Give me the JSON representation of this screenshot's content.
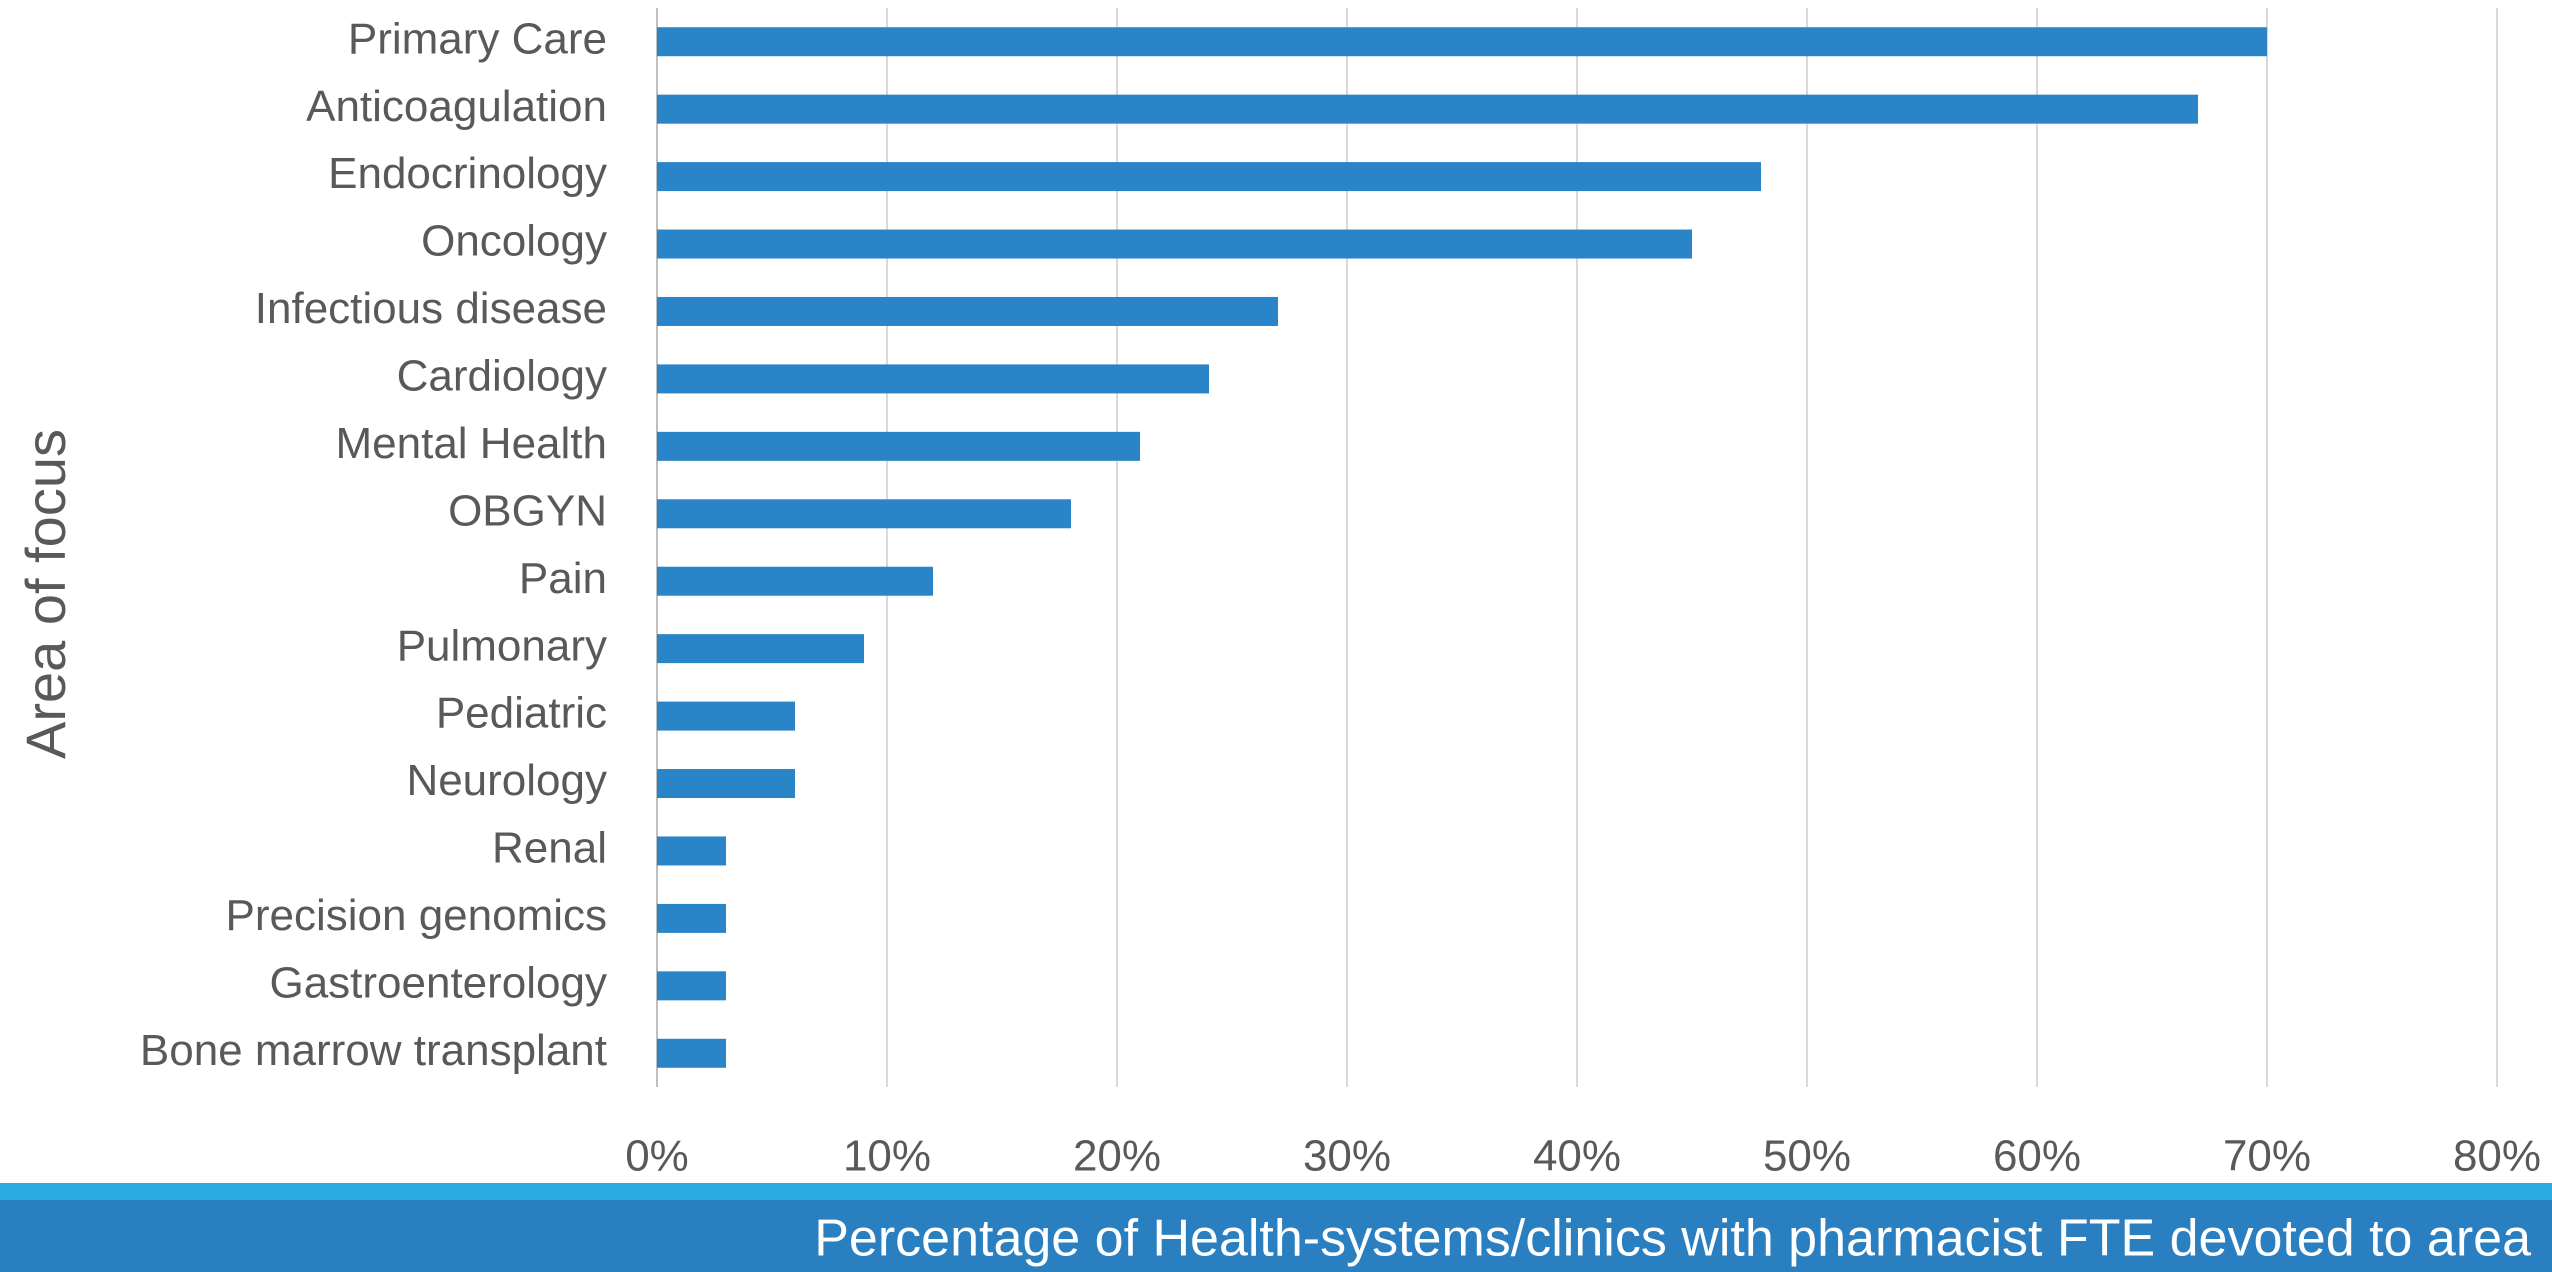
{
  "chart_data": {
    "type": "barh",
    "categories": [
      "Primary Care",
      "Anticoagulation",
      "Endocrinology",
      "Oncology",
      "Infectious disease",
      "Cardiology",
      "Mental Health",
      "OBGYN",
      "Pain",
      "Pulmonary",
      "Pediatric",
      "Neurology",
      "Renal",
      "Precision genomics",
      "Gastroenterology",
      "Bone marrow transplant"
    ],
    "values": [
      70,
      67,
      48,
      45,
      27,
      24,
      21,
      18,
      12,
      9,
      6,
      6,
      3,
      3,
      3,
      3
    ],
    "color": "#2a84c8",
    "xlim": [
      0,
      80
    ],
    "xticks": [
      {
        "value": 0,
        "label": "0%"
      },
      {
        "value": 10,
        "label": "10%"
      },
      {
        "value": 20,
        "label": "20%"
      },
      {
        "value": 30,
        "label": "30%"
      },
      {
        "value": 40,
        "label": "40%"
      },
      {
        "value": 50,
        "label": "50%"
      },
      {
        "value": 60,
        "label": "60%"
      },
      {
        "value": 70,
        "label": "70%"
      },
      {
        "value": 80,
        "label": "80%"
      }
    ],
    "grid": true,
    "xlabel": "Percentage of Health-systems/clinics with pharmacist FTE devoted to area",
    "ylabel": "Area of focus"
  }
}
